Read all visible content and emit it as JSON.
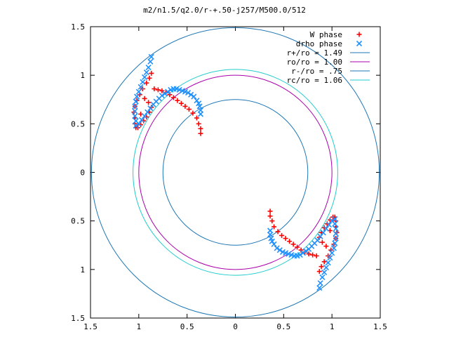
{
  "chart_data": {
    "type": "scatter",
    "title": "m2/n1.5/q2.0/r-+.50-j257/M500.0/512",
    "xlabel": "",
    "ylabel": "",
    "xlim": [
      -1.5,
      1.5
    ],
    "ylim": [
      -1.5,
      1.5
    ],
    "x_ticks": [
      "1.5",
      "1",
      "0.5",
      "0",
      "0.5",
      "1",
      "1.5"
    ],
    "y_ticks": [
      "1.5",
      "1",
      "0.5",
      "0",
      "0.5",
      "1",
      "1.5"
    ],
    "grid": false,
    "legend_position": "top-right",
    "colors": {
      "w_phase": "#ff0000",
      "drho_phase": "#1e90ff",
      "r_plus": "#1f77b4",
      "ro": "#aa00aa",
      "r_minus": "#1f77b4",
      "rc": "#22cccc"
    },
    "circles": [
      {
        "name": "r+/ro = 1.49",
        "radius": 1.49,
        "color": "#1f77b4"
      },
      {
        "name": "ro/ro = 1.00",
        "radius": 1.0,
        "color": "#aa00aa"
      },
      {
        "name": "r-/ro = .75",
        "radius": 0.75,
        "color": "#1f77b4"
      },
      {
        "name": "rc/ro = 1.06",
        "radius": 1.06,
        "color": "#22cccc"
      }
    ],
    "series": [
      {
        "name": "W phase",
        "marker": "+",
        "color": "#ff0000",
        "x": [
          -1.03,
          -1.04,
          -1.04,
          -1.05,
          -1.04,
          -1.02,
          -0.99,
          -0.96,
          -0.92,
          -0.89,
          -0.87,
          -0.84,
          -0.8,
          -0.76,
          -0.72,
          -0.68,
          -0.64,
          -0.6,
          -0.56,
          -0.52,
          -0.48,
          -0.44,
          -0.4,
          -0.38,
          -0.36,
          -0.36,
          -1.01,
          -0.98,
          -0.95,
          -0.92,
          -0.89,
          -0.87,
          -0.9,
          -0.94,
          -0.98,
          1.03,
          1.04,
          1.04,
          1.05,
          1.04,
          1.02,
          0.99,
          0.96,
          0.92,
          0.89,
          0.87,
          0.84,
          0.8,
          0.76,
          0.72,
          0.68,
          0.64,
          0.6,
          0.56,
          0.52,
          0.48,
          0.44,
          0.4,
          0.38,
          0.36,
          0.36,
          1.01,
          0.98,
          0.95,
          0.92,
          0.89,
          0.87,
          0.9,
          0.94,
          0.98
        ],
        "y": [
          0.46,
          0.5,
          0.56,
          0.62,
          0.68,
          0.74,
          0.8,
          0.86,
          0.92,
          0.97,
          1.02,
          0.86,
          0.85,
          0.84,
          0.82,
          0.8,
          0.77,
          0.74,
          0.71,
          0.68,
          0.65,
          0.61,
          0.56,
          0.5,
          0.45,
          0.4,
          0.46,
          0.49,
          0.53,
          0.57,
          0.62,
          0.67,
          0.72,
          0.76,
          0.6,
          -0.46,
          -0.5,
          -0.56,
          -0.62,
          -0.68,
          -0.74,
          -0.8,
          -0.86,
          -0.92,
          -0.97,
          -1.02,
          -0.86,
          -0.85,
          -0.84,
          -0.82,
          -0.8,
          -0.77,
          -0.74,
          -0.71,
          -0.68,
          -0.65,
          -0.61,
          -0.56,
          -0.5,
          -0.45,
          -0.4,
          -0.46,
          -0.49,
          -0.53,
          -0.57,
          -0.62,
          -0.67,
          -0.72,
          -0.76,
          -0.6
        ]
      },
      {
        "name": "drho phase",
        "marker": "x",
        "color": "#1e90ff",
        "x": [
          -1.03,
          -1.03,
          -1.04,
          -1.04,
          -1.04,
          -1.03,
          -1.02,
          -1.0,
          -0.98,
          -0.96,
          -0.94,
          -0.92,
          -0.9,
          -0.88,
          -0.87,
          -1.0,
          -0.97,
          -0.94,
          -0.91,
          -0.88,
          -0.85,
          -0.82,
          -0.79,
          -0.76,
          -0.73,
          -0.7,
          -0.67,
          -0.64,
          -0.61,
          -0.58,
          -0.55,
          -0.52,
          -0.49,
          -0.46,
          -0.43,
          -0.4,
          -0.38,
          -0.37,
          -0.36,
          -0.36,
          1.03,
          1.03,
          1.04,
          1.04,
          1.04,
          1.03,
          1.02,
          1.0,
          0.98,
          0.96,
          0.94,
          0.92,
          0.9,
          0.88,
          0.87,
          1.0,
          0.97,
          0.94,
          0.91,
          0.88,
          0.85,
          0.82,
          0.79,
          0.76,
          0.73,
          0.7,
          0.67,
          0.64,
          0.61,
          0.58,
          0.55,
          0.52,
          0.49,
          0.46,
          0.43,
          0.4,
          0.38,
          0.37,
          0.36,
          0.36
        ],
        "y": [
          0.48,
          0.53,
          0.58,
          0.63,
          0.68,
          0.73,
          0.78,
          0.83,
          0.88,
          0.93,
          0.98,
          1.03,
          1.08,
          1.14,
          1.19,
          0.5,
          0.54,
          0.58,
          0.62,
          0.66,
          0.7,
          0.73,
          0.76,
          0.79,
          0.81,
          0.83,
          0.85,
          0.86,
          0.86,
          0.85,
          0.84,
          0.83,
          0.82,
          0.8,
          0.78,
          0.74,
          0.71,
          0.68,
          0.64,
          0.6,
          -0.48,
          -0.53,
          -0.58,
          -0.63,
          -0.68,
          -0.73,
          -0.78,
          -0.83,
          -0.88,
          -0.93,
          -0.98,
          -1.03,
          -1.08,
          -1.14,
          -1.19,
          -0.5,
          -0.54,
          -0.58,
          -0.62,
          -0.66,
          -0.7,
          -0.73,
          -0.76,
          -0.79,
          -0.81,
          -0.83,
          -0.85,
          -0.86,
          -0.86,
          -0.85,
          -0.84,
          -0.83,
          -0.82,
          -0.8,
          -0.78,
          -0.74,
          -0.71,
          -0.68,
          -0.64,
          -0.6
        ]
      }
    ]
  }
}
